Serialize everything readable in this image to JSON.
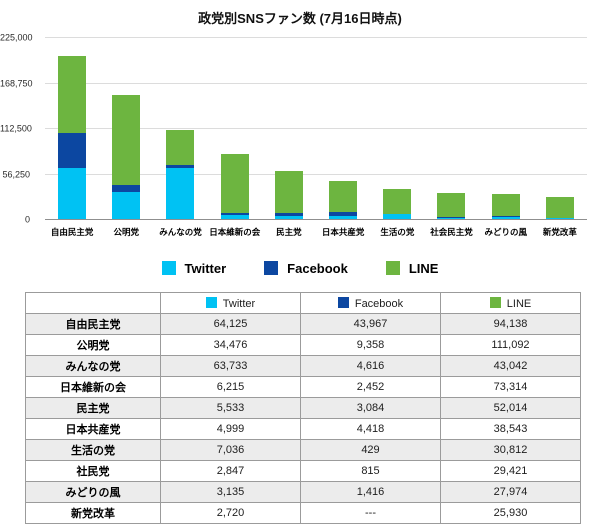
{
  "title": "政党別SNSファン数 (7月16日時点)",
  "colors": {
    "twitter": "#00c2f3",
    "facebook": "#0c47a1",
    "line": "#6db540",
    "gridline": "#dcdcdc",
    "axis": "#8f8f8f",
    "table_alt_row": "#ececec"
  },
  "chart_data": {
    "type": "bar",
    "stacked": true,
    "title": "政党別SNSファン数 (7月16日時点)",
    "categories": [
      "自由民主党",
      "公明党",
      "みんなの党",
      "日本維新の会",
      "民主党",
      "日本共産党",
      "生活の党",
      "社会民主党",
      "みどりの風",
      "新党改革"
    ],
    "series": [
      {
        "name": "Twitter",
        "color": "#00c2f3",
        "values": [
          64125,
          34476,
          63733,
          6215,
          5533,
          4999,
          7036,
          2847,
          3135,
          2720
        ]
      },
      {
        "name": "Facebook",
        "color": "#0c47a1",
        "values": [
          43967,
          9358,
          4616,
          2452,
          3084,
          4418,
          429,
          815,
          1416,
          0
        ]
      },
      {
        "name": "LINE",
        "color": "#6db540",
        "values": [
          94138,
          111092,
          43042,
          73314,
          52014,
          38543,
          30812,
          29421,
          27974,
          25930
        ]
      }
    ],
    "ylim": [
      0,
      225000
    ],
    "yticks": [
      {
        "value": 0,
        "label": "0"
      },
      {
        "value": 56250,
        "label": "56,250"
      },
      {
        "value": 112500,
        "label": "112,500"
      },
      {
        "value": 168750,
        "label": "168,750"
      },
      {
        "value": 225000,
        "label": "225,000"
      }
    ],
    "grid": true,
    "legend_position": "bottom",
    "legend": [
      "Twitter",
      "Facebook",
      "LINE"
    ]
  },
  "table": {
    "headers": [
      "",
      "Twitter",
      "Facebook",
      "LINE"
    ],
    "rows": [
      {
        "party": "自由民主党",
        "values": [
          "64,125",
          "43,967",
          "94,138"
        ]
      },
      {
        "party": "公明党",
        "values": [
          "34,476",
          "9,358",
          "111,092"
        ]
      },
      {
        "party": "みんなの党",
        "values": [
          "63,733",
          "4,616",
          "43,042"
        ]
      },
      {
        "party": "日本維新の会",
        "values": [
          "6,215",
          "2,452",
          "73,314"
        ]
      },
      {
        "party": "民主党",
        "values": [
          "5,533",
          "3,084",
          "52,014"
        ]
      },
      {
        "party": "日本共産党",
        "values": [
          "4,999",
          "4,418",
          "38,543"
        ]
      },
      {
        "party": "生活の党",
        "values": [
          "7,036",
          "429",
          "30,812"
        ]
      },
      {
        "party": "社民党",
        "values": [
          "2,847",
          "815",
          "29,421"
        ]
      },
      {
        "party": "みどりの風",
        "values": [
          "3,135",
          "1,416",
          "27,974"
        ]
      },
      {
        "party": "新党改革",
        "values": [
          "2,720",
          "---",
          "25,930"
        ]
      }
    ]
  }
}
